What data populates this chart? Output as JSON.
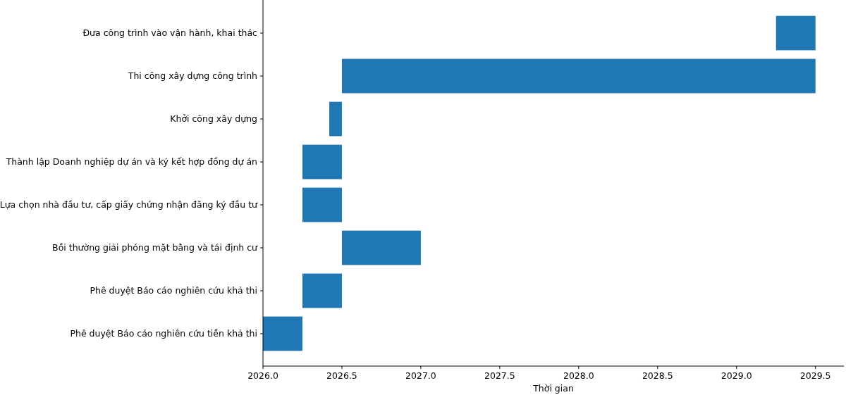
{
  "chart_data": {
    "type": "bar",
    "orientation": "horizontal",
    "xlabel": "Thời gian",
    "categories": [
      "Đưa công trình vào vận hành, khai thác",
      "Thi công xây dựng công trình",
      "Khởi công xây dựng",
      "Thành lập Doanh nghiệp dự án và ký kết hợp đồng dự án",
      "Lựa chọn nhà đầu tư, cấp giấy chứng nhận đăng ký đầu tư",
      "Bồi thường giải phóng mặt bằng và tái định cư",
      "Phê duyệt Báo cáo nghiên cứu khả thi",
      "Phê duyệt Báo cáo nghiên cứu tiền khả thi"
    ],
    "base": [
      2029.25,
      2026.5,
      2026.42,
      2026.25,
      2026.25,
      2026.5,
      2026.25,
      2026.0
    ],
    "values": [
      0.25,
      3.0,
      0.08,
      0.25,
      0.25,
      0.5,
      0.25,
      0.25
    ],
    "color": "#1f77b4",
    "xlim": [
      2026.0,
      2029.68
    ],
    "xticks": [
      {
        "value": 2026.0,
        "label": "2026.0"
      },
      {
        "value": 2026.5,
        "label": "2026.5"
      },
      {
        "value": 2027.0,
        "label": "2027.0"
      },
      {
        "value": 2027.5,
        "label": "2027.5"
      },
      {
        "value": 2028.0,
        "label": "2028.0"
      },
      {
        "value": 2028.5,
        "label": "2028.5"
      },
      {
        "value": 2029.0,
        "label": "2029.0"
      },
      {
        "value": 2029.5,
        "label": "2029.5"
      }
    ]
  }
}
